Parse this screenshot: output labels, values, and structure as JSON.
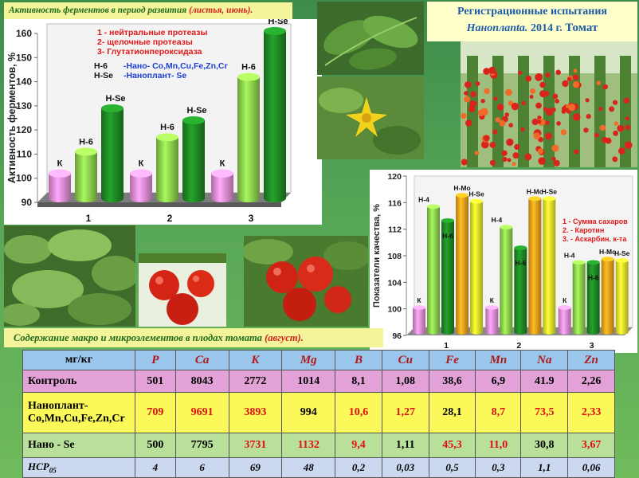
{
  "header": {
    "title_main": "Активность ферментов в период развития",
    "title_note": "(листья, июнь)."
  },
  "registration": {
    "line1": "Регистрационные испытания",
    "line2_a": "Наноплanta.",
    "line2_year": "2014 г.",
    "line2_crop": "Томат"
  },
  "colors": {
    "pink": "#e98fd6",
    "light_green": "#8ed24e",
    "dark_green": "#1f8a25",
    "orange": "#f3a21c",
    "yellow": "#ecec2e",
    "red": "#e01010"
  },
  "chart_data": [
    {
      "type": "bar",
      "ylabel": "Активность ферментов, %",
      "ylim": [
        90,
        160
      ],
      "yticks": [
        90,
        100,
        110,
        120,
        130,
        140,
        150,
        160
      ],
      "categories": [
        "1",
        "2",
        "3"
      ],
      "series": [
        {
          "name": "К",
          "color": "pink",
          "values": [
            102,
            102,
            102
          ]
        },
        {
          "name": "Н-6",
          "color": "light_green",
          "values": [
            111,
            117,
            142
          ]
        },
        {
          "name": "Н-Se",
          "color": "dark_green",
          "values": [
            129,
            124,
            161
          ]
        }
      ],
      "legend": [
        "1 - нейтральные протеазы",
        "2- щелочные протеазы",
        "3- Глутатионпероксидаза"
      ],
      "legend2": [
        {
          "key": "Н-6",
          "text": "-Нано- Co,Mn,Cu,Fe,Zn,Cr"
        },
        {
          "key": "Н-Se",
          "text": "-Наноплант- Se"
        }
      ]
    },
    {
      "type": "bar",
      "ylabel": "Показатели качества, %",
      "ylim": [
        96,
        120
      ],
      "yticks": [
        96,
        100,
        104,
        108,
        112,
        116,
        120
      ],
      "categories": [
        "1",
        "2",
        "3"
      ],
      "series": [
        {
          "name": "К",
          "color": "pink",
          "values": [
            100.2,
            100.2,
            100.2
          ]
        },
        {
          "name": "Н-4",
          "color": "light_green",
          "values": [
            115.4,
            112.3,
            107
          ]
        },
        {
          "name": "Н-6",
          "color": "dark_green",
          "values": [
            113.3,
            109.2,
            107
          ]
        },
        {
          "name": "Н-Мо",
          "color": "orange",
          "values": [
            117.1,
            116.6,
            107.5
          ]
        },
        {
          "name": "Н-Se",
          "color": "yellow",
          "values": [
            116.2,
            116.6,
            107.3
          ]
        }
      ],
      "legend": [
        "1 - Сумма сахаров",
        "2. - Каротин",
        "3. - Аскарбин. к-та"
      ]
    }
  ],
  "subtitle2": {
    "main": "Содержание макро и микроэлементов в плодах томата",
    "note": "(август)."
  },
  "table": {
    "header": [
      "мг/кг",
      "P",
      "Ca",
      "K",
      "Mg",
      "B",
      "Cu",
      "Fe",
      "Mn",
      "Na",
      "Zn"
    ],
    "rows": [
      {
        "label": "Контроль",
        "values": [
          "501",
          "8043",
          "2772",
          "1014",
          "8,1",
          "1,08",
          "38,6",
          "6,9",
          "41.9",
          "2,26"
        ]
      },
      {
        "label": "Наноплант-",
        "label2": "Co,Mn,Cu,Fe,Zn,Cr",
        "values": [
          "709",
          "9691",
          "3893",
          "994",
          "10,6",
          "1,27",
          "28,1",
          "8,7",
          "73,5",
          "2,33"
        ]
      },
      {
        "label": "Нано - Se",
        "values": [
          "500",
          "7795",
          "3731",
          "1132",
          "9,4",
          "1,11",
          "45,3",
          "11,0",
          "30,8",
          "3,67"
        ]
      },
      {
        "label": "НСР",
        "label_sub": "05",
        "values": [
          "4",
          "6",
          "69",
          "48",
          "0,2",
          "0,03",
          "0,5",
          "0,3",
          "1,1",
          "0,06"
        ]
      }
    ]
  }
}
